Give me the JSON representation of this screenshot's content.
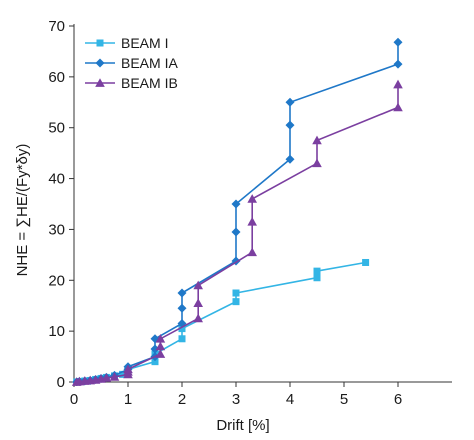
{
  "chart_data": {
    "type": "line",
    "xlabel": "Drift [%]",
    "ylabel": "NHE = ∑HE/(Fy*δy)",
    "xlim": [
      0,
      7
    ],
    "ylim": [
      0,
      70
    ],
    "xticks": [
      "0",
      "1",
      "2",
      "3",
      "4",
      "5",
      "6"
    ],
    "yticks": [
      "0",
      "10",
      "20",
      "30",
      "40",
      "50",
      "60",
      "70"
    ],
    "grid": false,
    "legend_position": "top-left",
    "series": [
      {
        "name": "BEAM I",
        "color": "#33b5e5",
        "marker": "square",
        "x": [
          0.05,
          0.1,
          0.2,
          0.3,
          0.4,
          0.5,
          0.6,
          0.75,
          0.9,
          1.0,
          1.0,
          1.5,
          1.5,
          2.0,
          2.0,
          3.0,
          3.0,
          4.5,
          4.5,
          5.4
        ],
        "y": [
          0,
          0.1,
          0.2,
          0.3,
          0.5,
          0.7,
          0.9,
          1.2,
          1.5,
          2.0,
          2.5,
          4.0,
          5.5,
          8.5,
          10.5,
          15.8,
          17.5,
          20.5,
          21.8,
          23.5
        ]
      },
      {
        "name": "BEAM IA",
        "color": "#1f78c8",
        "marker": "diamond",
        "x": [
          0.05,
          0.1,
          0.2,
          0.3,
          0.4,
          0.5,
          0.6,
          0.75,
          1.0,
          1.0,
          1.5,
          1.5,
          1.5,
          2.0,
          2.0,
          2.0,
          3.0,
          3.0,
          3.0,
          4.0,
          4.0,
          4.0,
          6.0,
          6.0
        ],
        "y": [
          0,
          0.1,
          0.2,
          0.3,
          0.5,
          0.7,
          0.9,
          1.3,
          2.5,
          3.0,
          5.0,
          6.5,
          8.5,
          11.5,
          14.5,
          17.5,
          23.8,
          29.5,
          35.0,
          43.8,
          50.5,
          55.0,
          62.5,
          66.8
        ]
      },
      {
        "name": "BEAM IB",
        "color": "#7b3fa0",
        "marker": "triangle",
        "x": [
          0.05,
          0.1,
          0.2,
          0.3,
          0.4,
          0.5,
          0.6,
          0.75,
          1.0,
          1.0,
          1.0,
          1.6,
          1.6,
          1.6,
          2.3,
          2.3,
          2.3,
          3.3,
          3.3,
          3.3,
          4.5,
          4.5,
          6.0,
          6.0
        ],
        "y": [
          0,
          0.1,
          0.2,
          0.3,
          0.4,
          0.6,
          0.8,
          1.0,
          1.5,
          2.0,
          2.5,
          5.5,
          7.0,
          8.5,
          12.5,
          15.5,
          19.0,
          25.5,
          31.5,
          36.0,
          43.0,
          47.5,
          54.0,
          58.5
        ]
      }
    ]
  }
}
